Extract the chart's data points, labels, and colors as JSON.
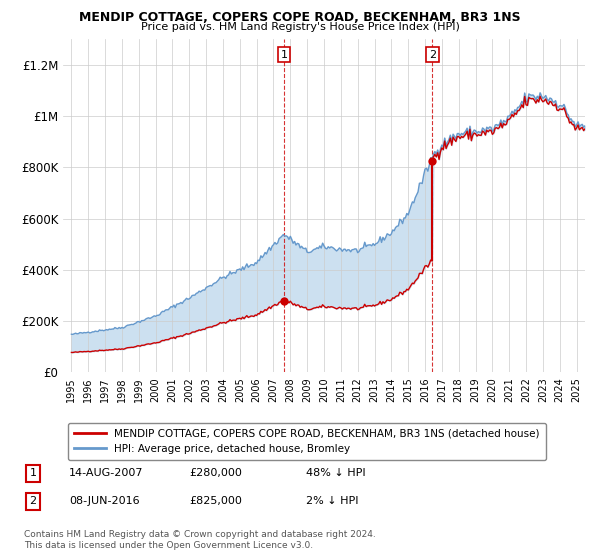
{
  "title1": "MENDIP COTTAGE, COPERS COPE ROAD, BECKENHAM, BR3 1NS",
  "title2": "Price paid vs. HM Land Registry's House Price Index (HPI)",
  "legend_property": "MENDIP COTTAGE, COPERS COPE ROAD, BECKENHAM, BR3 1NS (detached house)",
  "legend_hpi": "HPI: Average price, detached house, Bromley",
  "annotation1_date": "14-AUG-2007",
  "annotation1_price": "£280,000",
  "annotation1_hpi": "48% ↓ HPI",
  "annotation2_date": "08-JUN-2016",
  "annotation2_price": "£825,000",
  "annotation2_hpi": "2% ↓ HPI",
  "footnote1": "Contains HM Land Registry data © Crown copyright and database right 2024.",
  "footnote2": "This data is licensed under the Open Government Licence v3.0.",
  "sale1_year": 2007.619,
  "sale1_price": 280000,
  "sale2_year": 2016.436,
  "sale2_price": 825000,
  "property_color": "#cc0000",
  "hpi_color": "#6699cc",
  "shade_color": "#cce0f0",
  "background_color": "#ffffff",
  "ylim_max": 1300000,
  "xlim_start": 1994.5,
  "xlim_end": 2025.5
}
